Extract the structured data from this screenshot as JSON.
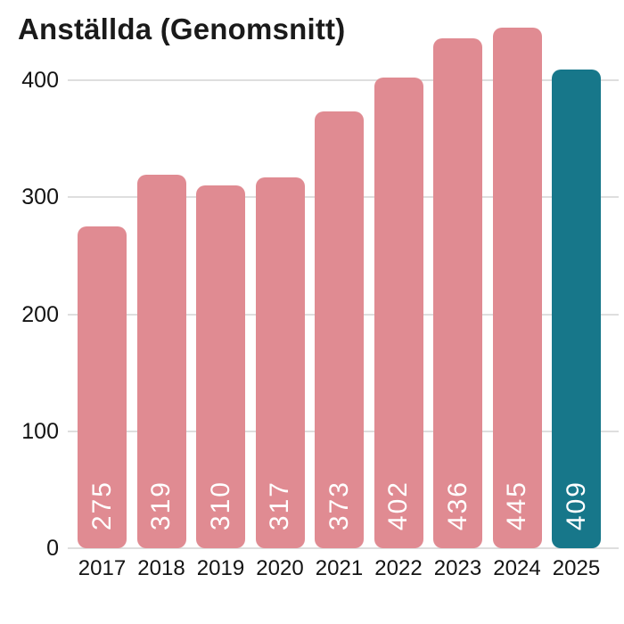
{
  "title": "Anställda (Genomsnitt)",
  "colors": {
    "background": "#ffffff",
    "bar_default": "#e08b92",
    "bar_highlight": "#17778a",
    "bar_value_text": "#ffffff",
    "axis_text": "#141414",
    "title_text": "#1a1a1a",
    "gridline": "#dedede"
  },
  "chart_data": {
    "type": "bar",
    "title": "Anställda (Genomsnitt)",
    "categories": [
      "2017",
      "2018",
      "2019",
      "2020",
      "2021",
      "2022",
      "2023",
      "2024",
      "2025"
    ],
    "values": [
      275,
      319,
      310,
      317,
      373,
      402,
      436,
      445,
      409
    ],
    "bar_value_labels": [
      "275",
      "319",
      "310",
      "317",
      "373",
      "402",
      "436",
      "445",
      "409"
    ],
    "highlight_index": 8,
    "yticks": [
      0,
      100,
      200,
      300,
      400
    ],
    "ytick_labels": [
      "0",
      "100",
      "200",
      "300",
      "400"
    ],
    "ylim": [
      0,
      450
    ],
    "xlabel": "",
    "ylabel": "",
    "grid": true,
    "legend": false,
    "value_labels_position": "inside-bottom-rotated"
  }
}
